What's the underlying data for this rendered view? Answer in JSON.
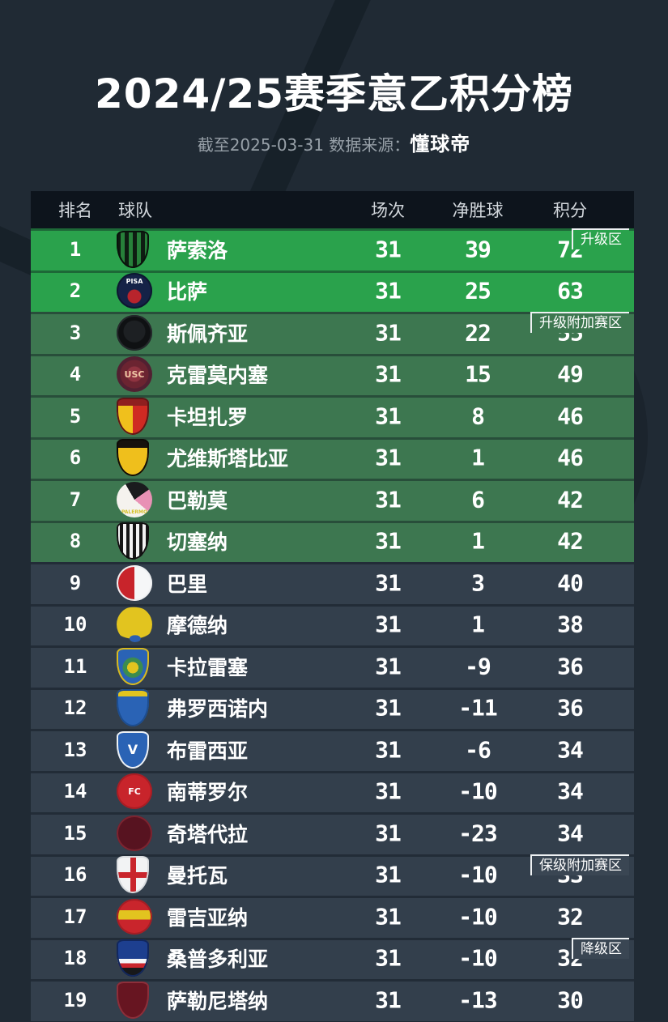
{
  "title": "2024/25赛季意乙积分榜",
  "subtitle": {
    "prefix": "截至2025-03-31 数据来源：",
    "source": "懂球帝"
  },
  "colors": {
    "page_bg": "#202a34",
    "header_bg": "#0d141c",
    "header_text": "#d3d8dd",
    "promotion_green": "#2aa24c",
    "playoff_green": "#3d7750",
    "mid_slate": "#333f4c",
    "tag_slate": "#3a4653",
    "tag_border": "#eef1f3",
    "subtitle_text": "#97a0a8"
  },
  "chart_data": {
    "type": "table",
    "title": "2024/25赛季意乙积分榜",
    "as_of": "截至2025-03-31",
    "source": "懂球帝",
    "columns": [
      "排名",
      "球队",
      "场次",
      "净胜球",
      "积分"
    ],
    "rows": [
      [
        1,
        "萨索洛",
        31,
        39,
        72
      ],
      [
        2,
        "比萨",
        31,
        25,
        63
      ],
      [
        3,
        "斯佩齐亚",
        31,
        22,
        55
      ],
      [
        4,
        "克雷莫内塞",
        31,
        15,
        49
      ],
      [
        5,
        "卡坦扎罗",
        31,
        8,
        46
      ],
      [
        6,
        "尤维斯塔比亚",
        31,
        1,
        46
      ],
      [
        7,
        "巴勒莫",
        31,
        6,
        42
      ],
      [
        8,
        "切塞纳",
        31,
        1,
        42
      ],
      [
        9,
        "巴里",
        31,
        3,
        40
      ],
      [
        10,
        "摩德纳",
        31,
        1,
        38
      ],
      [
        11,
        "卡拉雷塞",
        31,
        -9,
        36
      ],
      [
        12,
        "弗罗西诺内",
        31,
        -11,
        36
      ],
      [
        13,
        "布雷西亚",
        31,
        -6,
        34
      ],
      [
        14,
        "南蒂罗尔",
        31,
        -10,
        34
      ],
      [
        15,
        "奇塔代拉",
        31,
        -23,
        34
      ],
      [
        16,
        "曼托瓦",
        31,
        -10,
        33
      ],
      [
        17,
        "雷吉亚纳",
        31,
        -10,
        32
      ],
      [
        18,
        "桑普多利亚",
        31,
        -10,
        32
      ],
      [
        19,
        "萨勒尼塔纳",
        31,
        -13,
        30
      ]
    ],
    "zone_annotations": [
      {
        "label": "升级区",
        "first_row": 1
      },
      {
        "label": "升级附加赛区",
        "first_row": 3
      },
      {
        "label": "保级附加赛区",
        "first_row": 16
      },
      {
        "label": "降级区",
        "first_row": 18
      }
    ]
  },
  "table": {
    "columns": [
      {
        "key": "rank",
        "label": "排名"
      },
      {
        "key": "team",
        "label": "球队"
      },
      {
        "key": "played",
        "label": "场次"
      },
      {
        "key": "gd",
        "label": "净胜球"
      },
      {
        "key": "points",
        "label": "积分"
      }
    ],
    "rows": [
      {
        "rank": "1",
        "team": "萨索洛",
        "played": "31",
        "gd": "39",
        "points": "72",
        "zone": "promotion",
        "tag": "升级区",
        "tag_bg": "#2aa24c",
        "badge": {
          "shape": "shield",
          "bg": "repeating-linear-gradient(90deg,#0e1c12 0 5px,#27803a 5px 10px)",
          "ring": "#0a120c",
          "glyph": ""
        }
      },
      {
        "rank": "2",
        "team": "比萨",
        "played": "31",
        "gd": "25",
        "points": "63",
        "zone": "promotion",
        "badge": {
          "shape": "circle",
          "bg": "radial-gradient(circle at 50% 66%, #b8242c 0 8px, #152247 9px)",
          "ring": "#0d1730",
          "glyph": "PISA",
          "glyph_size": "8px",
          "glyph_pos": "top"
        }
      },
      {
        "rank": "3",
        "team": "斯佩齐亚",
        "played": "31",
        "gd": "22",
        "points": "55",
        "zone": "playoff",
        "tag": "升级附加赛区",
        "tag_bg": "#3d7750",
        "badge": {
          "shape": "circle",
          "bg": "radial-gradient(circle at 50% 46%, #1d2023 0 13px, #0f1113 14px)",
          "ring": "#24282b",
          "glyph": ""
        }
      },
      {
        "rank": "4",
        "team": "克雷莫内塞",
        "played": "31",
        "gd": "15",
        "points": "49",
        "zone": "playoff",
        "badge": {
          "shape": "circle",
          "bg": "radial-gradient(circle at 50% 50%, #8f3340 0 9px, #6b2431 10px 17px, #512031 18px)",
          "glyph": "USC",
          "glyph_color": "#efc6a4",
          "glyph_size": "11px"
        }
      },
      {
        "rank": "5",
        "team": "卡坦扎罗",
        "played": "31",
        "gd": "8",
        "points": "46",
        "zone": "playoff",
        "badge": {
          "shape": "shield",
          "bg": "linear-gradient(180deg, #8f1f1f 0 22%, rgba(0,0,0,0) 22%), linear-gradient(90deg, #f0c01c 0 50%, #cf2a22 50%)",
          "ring": "#5f1616",
          "glyph": ""
        }
      },
      {
        "rank": "6",
        "team": "尤维斯塔比亚",
        "played": "31",
        "gd": "1",
        "points": "46",
        "zone": "playoff",
        "badge": {
          "shape": "shield",
          "bg": "linear-gradient(180deg, #17120d 0 24%, #efbf1c 24%)",
          "ring": "#0f0c08",
          "glyph": ""
        }
      },
      {
        "rank": "7",
        "team": "巴勒莫",
        "played": "31",
        "gd": "6",
        "points": "42",
        "zone": "playoff",
        "badge": {
          "shape": "circle",
          "bg": "conic-gradient(from 200deg, #f5f2ee 0 130deg, #1a1b1e 130deg 215deg, #e891b5 215deg 290deg, #f5f2ee 290deg)",
          "glyph": "PALERMO",
          "glyph_color": "#d6c22c",
          "glyph_size": "6px",
          "glyph_pos": "bottom"
        }
      },
      {
        "rank": "8",
        "team": "切塞纳",
        "played": "31",
        "gd": "1",
        "points": "42",
        "zone": "playoff",
        "badge": {
          "shape": "shield",
          "bg": "repeating-linear-gradient(90deg, #f2f2f2 0 4px, #161616 4px 8px)",
          "ring": "#101010",
          "glyph": ""
        }
      },
      {
        "rank": "9",
        "team": "巴里",
        "played": "31",
        "gd": "3",
        "points": "40",
        "zone": "mid",
        "badge": {
          "shape": "circle",
          "bg": "linear-gradient(90deg, #c8242b 0 50%, #f6f7f8 50%)",
          "ring": "#eef0f2",
          "glyph": ""
        }
      },
      {
        "rank": "10",
        "team": "摩德纳",
        "played": "31",
        "gd": "1",
        "points": "38",
        "zone": "mid",
        "badge": {
          "shape": "circle",
          "bg": "radial-gradient(ellipse 16% 10% at 52% 90%, #2b5fb0 0 97%, rgba(0,0,0,0) 100%), radial-gradient(ellipse 62% 45% at 48% 46%, #e2c41f 0 97%, rgba(0,0,0,0) 100%)",
          "glyph": ""
        }
      },
      {
        "rank": "11",
        "team": "卡拉雷塞",
        "played": "31",
        "gd": "-9",
        "points": "36",
        "zone": "mid",
        "badge": {
          "shape": "shield",
          "bg": "radial-gradient(circle at 50% 53%, #e2c41f 0 7px, #3c8c4e 7px 12px, #2a63b5 13px)",
          "ring": "#d9b91c",
          "glyph": ""
        }
      },
      {
        "rank": "12",
        "team": "弗罗西诺内",
        "played": "31",
        "gd": "-11",
        "points": "36",
        "zone": "mid",
        "badge": {
          "shape": "shield",
          "bg": "linear-gradient(180deg, #e2c41f 0 20%, #2a63b5 20%)",
          "ring": "#1d4d8f",
          "glyph": ""
        }
      },
      {
        "rank": "13",
        "team": "布雷西亚",
        "played": "31",
        "gd": "-6",
        "points": "34",
        "zone": "mid",
        "badge": {
          "shape": "shield",
          "bg": "#2a63b5",
          "ring": "#eef1f4",
          "glyph": "V",
          "glyph_size": "16px"
        }
      },
      {
        "rank": "14",
        "team": "南蒂罗尔",
        "played": "31",
        "gd": "-10",
        "points": "34",
        "zone": "mid",
        "badge": {
          "shape": "circle",
          "bg": "#c8242b",
          "ring": "#a81d24",
          "glyph": "FC",
          "glyph_size": "11px"
        }
      },
      {
        "rank": "15",
        "team": "奇塔代拉",
        "played": "31",
        "gd": "-23",
        "points": "34",
        "zone": "mid",
        "badge": {
          "shape": "circle",
          "bg": "#571320",
          "ring": "#7c2430",
          "glyph": ""
        }
      },
      {
        "rank": "16",
        "team": "曼托瓦",
        "played": "31",
        "gd": "-10",
        "points": "33",
        "zone": "mid",
        "tag": "保级附加赛区",
        "tag_bg": "#3a4653",
        "badge": {
          "shape": "shield",
          "bg": "linear-gradient(#c9252c,#c9252c) 50% 50%/100% 7px no-repeat, linear-gradient(#c9252c,#c9252c) 50% 50%/7px 100% no-repeat, #f2f3f4",
          "ring": "#d8dbde",
          "glyph": ""
        }
      },
      {
        "rank": "17",
        "team": "雷吉亚纳",
        "played": "31",
        "gd": "-10",
        "points": "32",
        "zone": "mid",
        "badge": {
          "shape": "circle",
          "bg": "linear-gradient(180deg, #c9252c 0 32%, #e2c41f 32% 58%, #c9252c 58%)",
          "ring": "#a51d24",
          "glyph": ""
        }
      },
      {
        "rank": "18",
        "team": "桑普多利亚",
        "played": "31",
        "gd": "-10",
        "points": "32",
        "zone": "mid",
        "tag": "降级区",
        "tag_bg": "#3a4653",
        "badge": {
          "shape": "shield",
          "bg": "linear-gradient(180deg, #1d3f8f 0 52%, #f5f6f7 52% 64%, #c9252c 64% 76%, #17181a 76%)",
          "ring": "#12275c",
          "glyph": ""
        }
      },
      {
        "rank": "19",
        "team": "萨勒尼塔纳",
        "played": "31",
        "gd": "-13",
        "points": "30",
        "zone": "mid",
        "badge": {
          "shape": "shield",
          "bg": "#671521",
          "ring": "#8c2f3a",
          "glyph": ""
        }
      }
    ]
  }
}
